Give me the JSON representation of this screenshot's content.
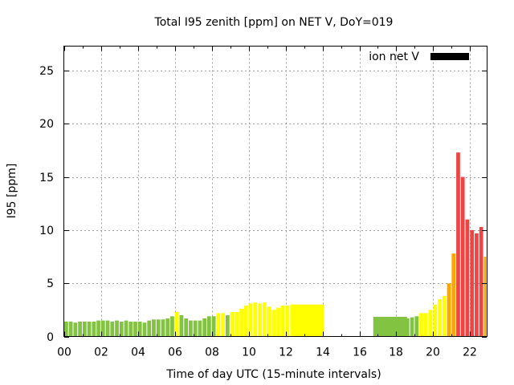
{
  "chart_data": {
    "type": "bar",
    "title": "Total I95 zenith [ppm] on NET V, DoY=019",
    "xlabel": "Time of day UTC (15-minute intervals)",
    "ylabel": "I95 [ppm]",
    "legend": {
      "label": "ion net V",
      "color": "#000000",
      "placement": "top-right"
    },
    "xlim_hours": [
      0,
      22.9
    ],
    "ylim": [
      0,
      27.3
    ],
    "grid": true,
    "x_ticks": [
      "00",
      "02",
      "04",
      "06",
      "08",
      "10",
      "12",
      "14",
      "16",
      "18",
      "20",
      "22"
    ],
    "x_tick_hours": [
      0,
      2,
      4,
      6,
      8,
      10,
      12,
      14,
      16,
      18,
      20,
      22
    ],
    "y_ticks": [
      0,
      5,
      10,
      15,
      20,
      25
    ],
    "interval_minutes": 15,
    "color_scale": {
      "green": "#82c341",
      "yellow": "#ffff00",
      "orange": "#ffa500",
      "red": "#ee4444"
    },
    "bars": [
      {
        "i": 0,
        "v": 1.4,
        "c": "green"
      },
      {
        "i": 1,
        "v": 1.4,
        "c": "green"
      },
      {
        "i": 2,
        "v": 1.3,
        "c": "green"
      },
      {
        "i": 3,
        "v": 1.4,
        "c": "green"
      },
      {
        "i": 4,
        "v": 1.4,
        "c": "green"
      },
      {
        "i": 5,
        "v": 1.4,
        "c": "green"
      },
      {
        "i": 6,
        "v": 1.4,
        "c": "green"
      },
      {
        "i": 7,
        "v": 1.5,
        "c": "green"
      },
      {
        "i": 8,
        "v": 1.5,
        "c": "green"
      },
      {
        "i": 9,
        "v": 1.5,
        "c": "green"
      },
      {
        "i": 10,
        "v": 1.4,
        "c": "green"
      },
      {
        "i": 11,
        "v": 1.5,
        "c": "green"
      },
      {
        "i": 12,
        "v": 1.4,
        "c": "green"
      },
      {
        "i": 13,
        "v": 1.5,
        "c": "green"
      },
      {
        "i": 14,
        "v": 1.4,
        "c": "green"
      },
      {
        "i": 15,
        "v": 1.4,
        "c": "green"
      },
      {
        "i": 16,
        "v": 1.4,
        "c": "green"
      },
      {
        "i": 17,
        "v": 1.3,
        "c": "green"
      },
      {
        "i": 18,
        "v": 1.5,
        "c": "green"
      },
      {
        "i": 19,
        "v": 1.6,
        "c": "green"
      },
      {
        "i": 20,
        "v": 1.6,
        "c": "green"
      },
      {
        "i": 21,
        "v": 1.6,
        "c": "green"
      },
      {
        "i": 22,
        "v": 1.7,
        "c": "green"
      },
      {
        "i": 23,
        "v": 1.9,
        "c": "green"
      },
      {
        "i": 24,
        "v": 2.3,
        "c": "yellow"
      },
      {
        "i": 25,
        "v": 2.0,
        "c": "green"
      },
      {
        "i": 26,
        "v": 1.7,
        "c": "green"
      },
      {
        "i": 27,
        "v": 1.5,
        "c": "green"
      },
      {
        "i": 28,
        "v": 1.5,
        "c": "green"
      },
      {
        "i": 29,
        "v": 1.5,
        "c": "green"
      },
      {
        "i": 30,
        "v": 1.7,
        "c": "green"
      },
      {
        "i": 31,
        "v": 1.9,
        "c": "green"
      },
      {
        "i": 32,
        "v": 1.9,
        "c": "green"
      },
      {
        "i": 33,
        "v": 2.2,
        "c": "yellow"
      },
      {
        "i": 34,
        "v": 2.2,
        "c": "yellow"
      },
      {
        "i": 35,
        "v": 2.0,
        "c": "green"
      },
      {
        "i": 36,
        "v": 2.3,
        "c": "yellow"
      },
      {
        "i": 37,
        "v": 2.3,
        "c": "yellow"
      },
      {
        "i": 38,
        "v": 2.6,
        "c": "yellow"
      },
      {
        "i": 39,
        "v": 2.9,
        "c": "yellow"
      },
      {
        "i": 40,
        "v": 3.1,
        "c": "yellow"
      },
      {
        "i": 41,
        "v": 3.2,
        "c": "yellow"
      },
      {
        "i": 42,
        "v": 3.1,
        "c": "yellow"
      },
      {
        "i": 43,
        "v": 3.2,
        "c": "yellow"
      },
      {
        "i": 44,
        "v": 2.8,
        "c": "yellow"
      },
      {
        "i": 45,
        "v": 2.5,
        "c": "yellow"
      },
      {
        "i": 46,
        "v": 2.7,
        "c": "yellow"
      },
      {
        "i": 47,
        "v": 2.9,
        "c": "yellow"
      },
      {
        "i": 48,
        "v": 2.9,
        "c": "yellow"
      },
      {
        "i": 49,
        "v": 3.0,
        "c": "yellow",
        "w": 7.5
      },
      {
        "i": 67,
        "v": 1.85,
        "c": "green",
        "w": 7.5
      },
      {
        "i": 74,
        "v": 1.7,
        "c": "green"
      },
      {
        "i": 75,
        "v": 1.8,
        "c": "green"
      },
      {
        "i": 76,
        "v": 1.9,
        "c": "green"
      },
      {
        "i": 77,
        "v": 2.2,
        "c": "yellow"
      },
      {
        "i": 78,
        "v": 2.2,
        "c": "yellow"
      },
      {
        "i": 79,
        "v": 2.5,
        "c": "yellow"
      },
      {
        "i": 80,
        "v": 3.0,
        "c": "yellow"
      },
      {
        "i": 81,
        "v": 3.5,
        "c": "yellow"
      },
      {
        "i": 82,
        "v": 3.8,
        "c": "yellow"
      },
      {
        "i": 83,
        "v": 5.0,
        "c": "orange"
      },
      {
        "i": 84,
        "v": 7.8,
        "c": "orange"
      },
      {
        "i": 85,
        "v": 17.3,
        "c": "red"
      },
      {
        "i": 86,
        "v": 15.0,
        "c": "red"
      },
      {
        "i": 87,
        "v": 11.0,
        "c": "red"
      },
      {
        "i": 88,
        "v": 10.0,
        "c": "red"
      },
      {
        "i": 89,
        "v": 9.7,
        "c": "red"
      },
      {
        "i": 90,
        "v": 10.3,
        "c": "red"
      },
      {
        "i": 91,
        "v": 7.5,
        "c": "orange"
      }
    ]
  }
}
